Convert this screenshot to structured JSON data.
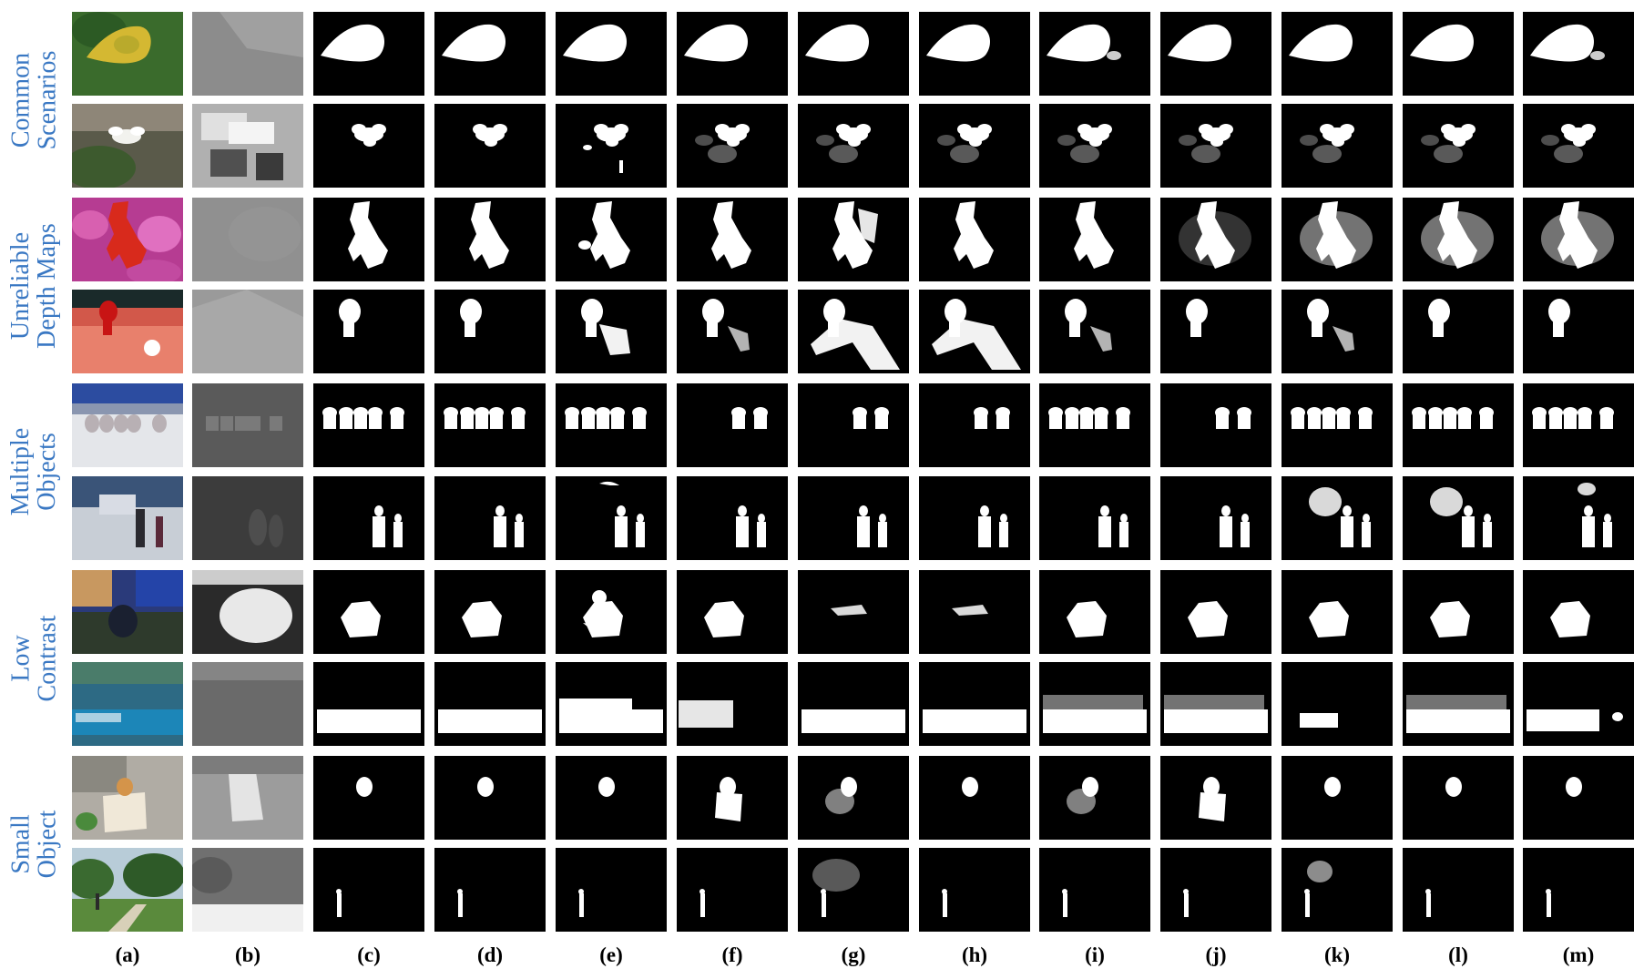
{
  "row_groups": [
    {
      "lines": [
        "Common",
        "Scenarios"
      ]
    },
    {
      "lines": [
        "Unreliable",
        "Depth Maps"
      ]
    },
    {
      "lines": [
        "Multiple",
        "Objects"
      ]
    },
    {
      "lines": [
        "Low",
        "Contrast"
      ]
    },
    {
      "lines": [
        "Small",
        "Object"
      ]
    }
  ],
  "column_labels": [
    "(a)",
    "(b)",
    "(c)",
    "(d)",
    "(e)",
    "(f)",
    "(g)",
    "(h)",
    "(i)",
    "(j)",
    "(k)",
    "(l)",
    "(m)"
  ],
  "rows": [
    {
      "subject": "leaf"
    },
    {
      "subject": "flower"
    },
    {
      "subject": "toy figure"
    },
    {
      "subject": "red knob"
    },
    {
      "subject": "toy figures group"
    },
    {
      "subject": "two people walking"
    },
    {
      "subject": "person low contrast"
    },
    {
      "subject": "shop sign"
    },
    {
      "subject": "small object on table"
    },
    {
      "subject": "small person in park"
    }
  ],
  "colors": {
    "label_blue": "#3a78c3",
    "mask_bg": "#000000",
    "mask_fg": "#ffffff"
  }
}
